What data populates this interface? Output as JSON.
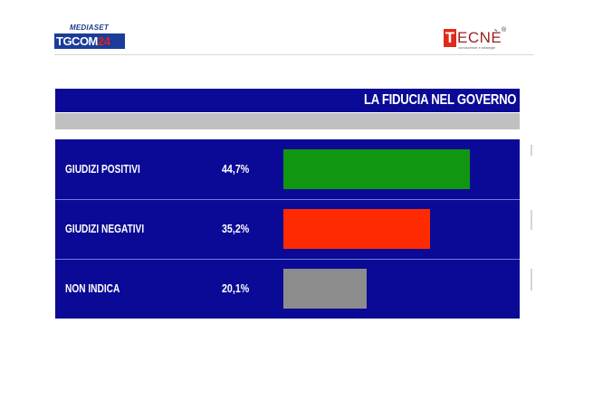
{
  "header": {
    "left_logo": {
      "top_text": "MEDIASET",
      "main_text": "TGCOM",
      "main_number": "24"
    },
    "right_logo": {
      "initial": "T",
      "rest": "ECNÈ",
      "registered": "®",
      "tagline": "conoscenze e strategie"
    }
  },
  "chart_data": {
    "type": "bar",
    "title": "LA FIDUCIA NEL GOVERNO",
    "orientation": "horizontal",
    "categories": [
      "GIUDIZI POSITIVI",
      "GIUDIZI NEGATIVI",
      "NON INDICA"
    ],
    "values": [
      44.7,
      35.2,
      20.1
    ],
    "value_labels": [
      "44,7%",
      "35,2%",
      "20,1%"
    ],
    "unit": "%",
    "colors": [
      "#109610",
      "#ff2a00",
      "#8c8c8c"
    ],
    "xlim": [
      0,
      100
    ]
  },
  "colors": {
    "panel": "#0a0a96",
    "subbar": "#c0c0c0"
  }
}
